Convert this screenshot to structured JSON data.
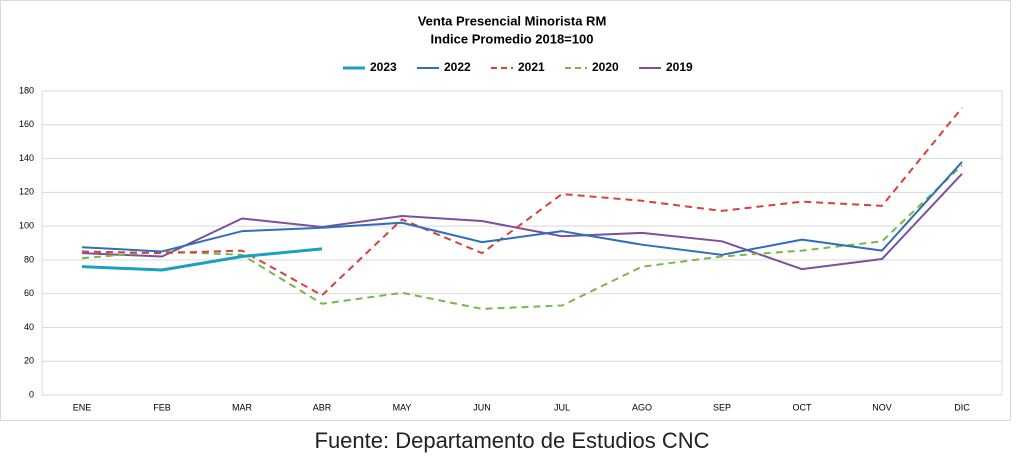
{
  "chart_data": {
    "type": "line",
    "title": "Venta Presencial Minorista RM",
    "subtitle": "Indice Promedio 2018=100",
    "source": "Fuente: Departamento de Estudios CNC",
    "categories": [
      "ENE",
      "FEB",
      "MAR",
      "ABR",
      "MAY",
      "JUN",
      "JUL",
      "AGO",
      "SEP",
      "OCT",
      "NOV",
      "DIC"
    ],
    "series": [
      {
        "name": "2023",
        "color": "#1ba1c0",
        "linewidth": 3,
        "dashed": false,
        "values": [
          76,
          74,
          82,
          86.5,
          null,
          null,
          null,
          null,
          null,
          null,
          null,
          null
        ]
      },
      {
        "name": "2022",
        "color": "#2e6fb7",
        "linewidth": 2,
        "dashed": false,
        "values": [
          87.5,
          85,
          97,
          99,
          102,
          90.5,
          97,
          89,
          83,
          92,
          85.5,
          138
        ]
      },
      {
        "name": "2021",
        "color": "#d9403c",
        "linewidth": 2,
        "dashed": true,
        "values": [
          85,
          84,
          85.5,
          59,
          104,
          84,
          119,
          115,
          109,
          114.5,
          112,
          170
        ]
      },
      {
        "name": "2020",
        "color": "#7ab648",
        "linewidth": 2,
        "dashed": true,
        "values": [
          81,
          85,
          83,
          54,
          60.5,
          51,
          53,
          76,
          82,
          85.5,
          91,
          136
        ]
      },
      {
        "name": "2019",
        "color": "#7d4f9e",
        "linewidth": 2,
        "dashed": false,
        "values": [
          84,
          82,
          104.5,
          99.5,
          106,
          103,
          94,
          96,
          91,
          74.5,
          80.5,
          131
        ]
      }
    ],
    "ylim": [
      0,
      180
    ],
    "yticks": [
      0,
      20,
      40,
      60,
      80,
      100,
      120,
      140,
      160,
      180
    ],
    "grid": true,
    "legend": "top"
  }
}
